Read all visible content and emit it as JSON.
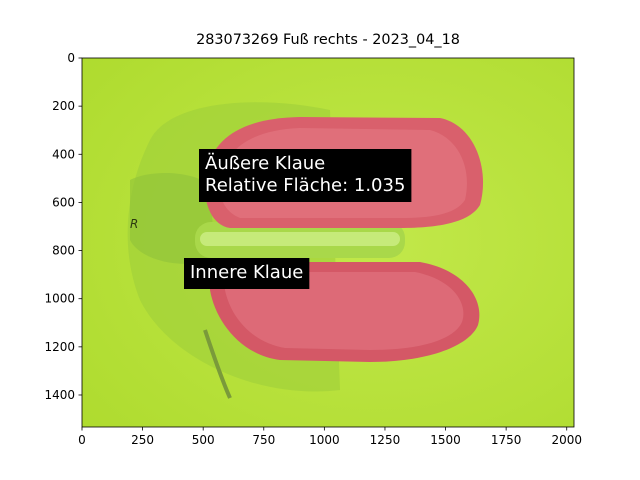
{
  "chart_data": {
    "type": "image",
    "title": "283073269 Fuß rechts - 2023_04_18",
    "xlim": [
      0,
      2030
    ],
    "ylim": [
      1533,
      0
    ],
    "xticks": [
      0,
      250,
      500,
      750,
      1000,
      1250,
      1500,
      1750,
      2000
    ],
    "yticks": [
      0,
      200,
      400,
      600,
      800,
      1000,
      1200,
      1400
    ],
    "annotations": [
      {
        "lines": [
          "Äußere Klaue",
          "Relative Fläche: 1.035"
        ]
      },
      {
        "lines": [
          "Innere Klaue"
        ]
      }
    ]
  }
}
